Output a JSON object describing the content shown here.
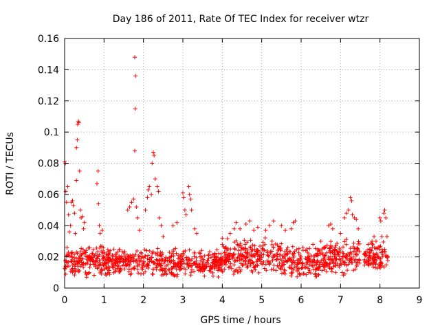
{
  "chart_data": {
    "type": "scatter",
    "title": "Day 186 of 2011, Rate Of TEC Index for receiver wtzr",
    "xlabel": "GPS time / hours",
    "ylabel": "ROTI / TECUs",
    "xlim": [
      0,
      9
    ],
    "ylim": [
      0,
      0.16
    ],
    "x_ticks": [
      0,
      1,
      2,
      3,
      4,
      5,
      6,
      7,
      8,
      9
    ],
    "x_tick_labels": [
      "0",
      "1",
      "2",
      "3",
      "4",
      "5",
      "6",
      "7",
      "8",
      "9"
    ],
    "y_ticks": [
      0,
      0.02,
      0.04,
      0.06,
      0.08,
      0.1,
      0.12,
      0.14,
      0.16
    ],
    "y_tick_labels": [
      "0",
      "0.02",
      "0.04",
      "0.06",
      "0.08",
      "0.1",
      "0.12",
      "0.14",
      "0.16"
    ],
    "grid": true,
    "marker": "+",
    "marker_color": "#ff0000",
    "series": [
      {
        "name": "ROTI",
        "points": [
          [
            0.0,
            0.081
          ],
          [
            0.02,
            0.08
          ],
          [
            0.03,
            0.062
          ],
          [
            0.05,
            0.055
          ],
          [
            0.08,
            0.065
          ],
          [
            0.1,
            0.047
          ],
          [
            0.12,
            0.036
          ],
          [
            0.15,
            0.04
          ],
          [
            0.17,
            0.055
          ],
          [
            0.2,
            0.056
          ],
          [
            0.22,
            0.053
          ],
          [
            0.25,
            0.048
          ],
          [
            0.27,
            0.035
          ],
          [
            0.3,
            0.09
          ],
          [
            0.32,
            0.095
          ],
          [
            0.33,
            0.105
          ],
          [
            0.35,
            0.107
          ],
          [
            0.36,
            0.106
          ],
          [
            0.38,
            0.075
          ],
          [
            0.3,
            0.069
          ],
          [
            0.4,
            0.05
          ],
          [
            0.42,
            0.045
          ],
          [
            0.45,
            0.046
          ],
          [
            0.48,
            0.038
          ],
          [
            0.5,
            0.042
          ],
          [
            0.85,
            0.075
          ],
          [
            0.82,
            0.067
          ],
          [
            0.86,
            0.054
          ],
          [
            0.88,
            0.04
          ],
          [
            0.9,
            0.035
          ],
          [
            0.95,
            0.037
          ],
          [
            1.6,
            0.05
          ],
          [
            1.65,
            0.052
          ],
          [
            1.7,
            0.055
          ],
          [
            1.75,
            0.057
          ],
          [
            1.78,
            0.148
          ],
          [
            1.8,
            0.136
          ],
          [
            1.79,
            0.115
          ],
          [
            1.78,
            0.088
          ],
          [
            1.82,
            0.052
          ],
          [
            1.85,
            0.045
          ],
          [
            1.9,
            0.037
          ],
          [
            2.05,
            0.05
          ],
          [
            2.1,
            0.058
          ],
          [
            2.12,
            0.063
          ],
          [
            2.15,
            0.065
          ],
          [
            2.2,
            0.06
          ],
          [
            2.25,
            0.087
          ],
          [
            2.27,
            0.085
          ],
          [
            2.22,
            0.08
          ],
          [
            2.3,
            0.07
          ],
          [
            2.35,
            0.065
          ],
          [
            2.38,
            0.062
          ],
          [
            2.4,
            0.045
          ],
          [
            2.45,
            0.04
          ],
          [
            2.5,
            0.033
          ],
          [
            2.75,
            0.04
          ],
          [
            2.85,
            0.042
          ],
          [
            3.0,
            0.061
          ],
          [
            3.02,
            0.058
          ],
          [
            3.05,
            0.05
          ],
          [
            3.08,
            0.047
          ],
          [
            3.15,
            0.065
          ],
          [
            3.17,
            0.06
          ],
          [
            3.2,
            0.057
          ],
          [
            3.22,
            0.05
          ],
          [
            3.3,
            0.038
          ],
          [
            3.35,
            0.035
          ],
          [
            4.0,
            0.032
          ],
          [
            4.2,
            0.035
          ],
          [
            4.3,
            0.038
          ],
          [
            4.35,
            0.042
          ],
          [
            4.45,
            0.038
          ],
          [
            4.6,
            0.041
          ],
          [
            4.7,
            0.043
          ],
          [
            4.8,
            0.037
          ],
          [
            4.9,
            0.039
          ],
          [
            5.1,
            0.037
          ],
          [
            5.2,
            0.04
          ],
          [
            5.3,
            0.043
          ],
          [
            5.5,
            0.04
          ],
          [
            5.6,
            0.037
          ],
          [
            5.75,
            0.038
          ],
          [
            5.8,
            0.042
          ],
          [
            5.85,
            0.043
          ],
          [
            6.3,
            0.028
          ],
          [
            6.5,
            0.03
          ],
          [
            6.7,
            0.04
          ],
          [
            6.75,
            0.041
          ],
          [
            6.8,
            0.038
          ],
          [
            7.0,
            0.035
          ],
          [
            7.1,
            0.045
          ],
          [
            7.15,
            0.048
          ],
          [
            7.2,
            0.05
          ],
          [
            7.25,
            0.058
          ],
          [
            7.28,
            0.056
          ],
          [
            7.3,
            0.047
          ],
          [
            7.35,
            0.045
          ],
          [
            7.4,
            0.044
          ],
          [
            7.45,
            0.038
          ],
          [
            7.7,
            0.028
          ],
          [
            7.75,
            0.025
          ],
          [
            7.8,
            0.03
          ],
          [
            7.85,
            0.033
          ],
          [
            7.9,
            0.03
          ],
          [
            8.0,
            0.045
          ],
          [
            8.02,
            0.043
          ],
          [
            8.05,
            0.033
          ],
          [
            8.1,
            0.048
          ],
          [
            8.12,
            0.05
          ],
          [
            8.15,
            0.045
          ],
          [
            8.18,
            0.033
          ],
          [
            8.2,
            0.02
          ]
        ],
        "dense_band": {
          "description": "dense cluster of points between 0 and about 8.2 h",
          "segments": [
            {
              "x": [
                0.0,
                1.0
              ],
              "y_range": [
                0.006,
                0.028
              ]
            },
            {
              "x": [
                1.0,
                2.5
              ],
              "y_range": [
                0.007,
                0.027
              ]
            },
            {
              "x": [
                2.5,
                4.0
              ],
              "y_range": [
                0.006,
                0.026
              ]
            },
            {
              "x": [
                4.0,
                5.5
              ],
              "y_range": [
                0.008,
                0.033
              ]
            },
            {
              "x": [
                5.5,
                6.5
              ],
              "y_range": [
                0.006,
                0.027
              ]
            },
            {
              "x": [
                6.5,
                7.5
              ],
              "y_range": [
                0.008,
                0.032
              ]
            },
            {
              "x": [
                7.6,
                8.2
              ],
              "y_range": [
                0.01,
                0.03
              ]
            }
          ]
        }
      }
    ]
  }
}
